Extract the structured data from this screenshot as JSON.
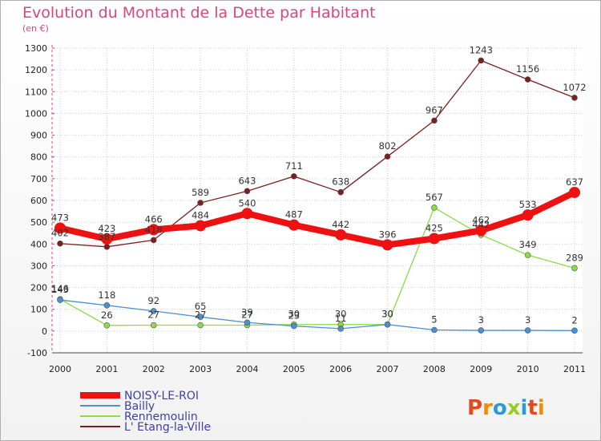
{
  "header": {
    "title": "Evolution du Montant de la Dette par Habitant",
    "unit": "(en €)"
  },
  "logo": {
    "text": "Proxiti"
  },
  "chart_data": {
    "type": "line",
    "title": "Evolution du Montant de la Dette par Habitant",
    "subtitle": "(en €)",
    "x": [
      "2000",
      "2001",
      "2002",
      "2003",
      "2004",
      "2005",
      "2006",
      "2007",
      "2008",
      "2009",
      "2010",
      "2011"
    ],
    "ylim": [
      -100,
      1300
    ],
    "yticks": [
      -100,
      0,
      100,
      200,
      300,
      400,
      500,
      600,
      700,
      800,
      900,
      1000,
      1100,
      1200,
      1300
    ],
    "grid": true,
    "legend_position": "bottom-left",
    "series": [
      {
        "name": "NOISY-LE-ROI",
        "color": "#ee1111",
        "values": [
          473,
          423,
          466,
          484,
          540,
          487,
          442,
          396,
          425,
          462,
          533,
          637
        ],
        "labels": [
          "473",
          "423",
          "466",
          "484",
          "540",
          "487",
          "442",
          "396",
          "425",
          "462",
          "533",
          "637"
        ],
        "label_pos": [
          "above",
          "above",
          "above",
          "above",
          "above",
          "above",
          "above",
          "above",
          "above",
          "above",
          "above",
          "above"
        ]
      },
      {
        "name": "Bailly",
        "color": "#4c8fd0",
        "values": [
          143,
          118,
          92,
          65,
          39,
          23,
          11,
          30,
          5,
          3,
          3,
          2
        ],
        "labels": [
          "143",
          "118",
          "92",
          "65",
          "39",
          "23",
          "11",
          "30",
          "5",
          "3",
          "3",
          "2"
        ],
        "label_pos": [
          "above",
          "above",
          "above",
          "above",
          "above",
          "above",
          "above",
          "above",
          "above",
          "above",
          "above",
          "above"
        ]
      },
      {
        "name": "Rennemoulin",
        "color": "#88dd44",
        "values": [
          146,
          26,
          27,
          27,
          27,
          30,
          30,
          30,
          567,
          442,
          349,
          289
        ],
        "labels": [
          "146",
          "26",
          "27",
          "27",
          "27",
          "30",
          "30",
          "30",
          "567",
          "442",
          "349",
          "289"
        ],
        "label_pos": [
          "above",
          "above",
          "above",
          "above",
          "above",
          "above",
          "above",
          "above",
          "above",
          "above",
          "above",
          "above"
        ]
      },
      {
        "name": "L' Etang-la-Ville",
        "color": "#7a1f1f",
        "values": [
          402,
          387,
          418,
          589,
          643,
          711,
          638,
          802,
          967,
          1243,
          1156,
          1072
        ],
        "labels": [
          "402",
          "387",
          "418",
          "589",
          "643",
          "711",
          "638",
          "802",
          "967",
          "1243",
          "1156",
          "1072"
        ],
        "label_pos": [
          "above",
          "above",
          "above",
          "above",
          "above",
          "above",
          "above",
          "above",
          "above",
          "above",
          "above",
          "above"
        ]
      }
    ]
  }
}
